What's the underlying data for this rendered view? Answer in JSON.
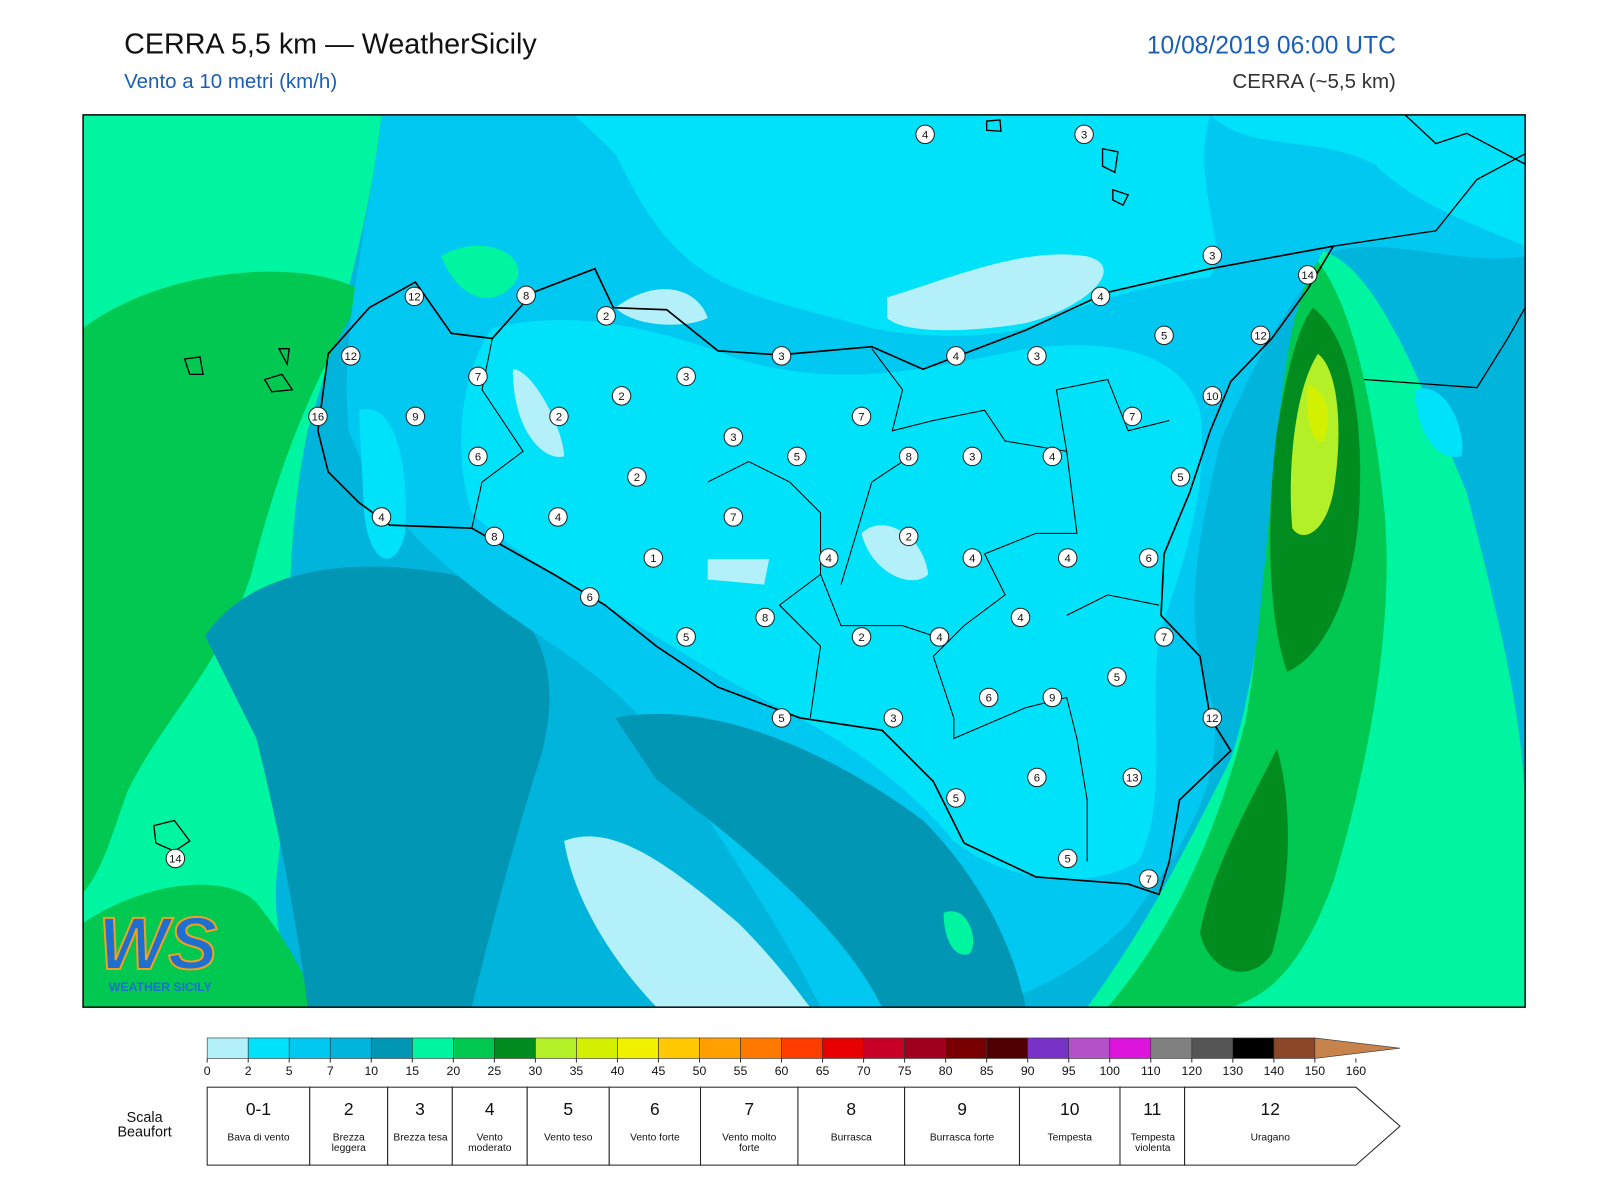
{
  "header": {
    "title": "CERRA 5,5 km — WeatherSicily",
    "subtitle": "Vento a 10 metri (km/h)",
    "datetime": "10/08/2019 06:00 UTC",
    "model": "CERRA (~5,5 km)"
  },
  "map": {
    "station_values": [
      4,
      3,
      3,
      14,
      12,
      8,
      2,
      4,
      5,
      12,
      12,
      3,
      4,
      3,
      7,
      3,
      2,
      10,
      16,
      9,
      2,
      7,
      7,
      3,
      6,
      5,
      8,
      3,
      4,
      2,
      5,
      4,
      4,
      7,
      8,
      2,
      1,
      4,
      4,
      4,
      6,
      6,
      4,
      8,
      5,
      2,
      4,
      7,
      5,
      6,
      9,
      5,
      3,
      12,
      6,
      13,
      5,
      5,
      7,
      14
    ],
    "logo": {
      "mark": "WS",
      "name": "WEATHER SICILY"
    }
  },
  "color_scale": {
    "ticks": [
      0,
      2,
      5,
      7,
      10,
      15,
      20,
      25,
      30,
      35,
      40,
      45,
      50,
      55,
      60,
      65,
      70,
      75,
      80,
      85,
      90,
      95,
      100,
      110,
      120,
      130,
      140,
      150,
      160
    ],
    "colors": [
      "#b4f0fa",
      "#00e1fa",
      "#00c8f0",
      "#00b4dc",
      "#0096b4",
      "#00f5a0",
      "#00c850",
      "#008c1e",
      "#b4f028",
      "#d2f000",
      "#f0f000",
      "#ffc800",
      "#ffa000",
      "#ff7800",
      "#ff3c00",
      "#e60000",
      "#c80028",
      "#a0001e",
      "#780000",
      "#500000",
      "#7832c8",
      "#b450c8",
      "#dc14dc",
      "#808080",
      "#555555",
      "#000000",
      "#8c4628",
      "#c8824b"
    ]
  },
  "beaufort": {
    "label": "Scala Beaufort",
    "levels": [
      {
        "force": "0-1",
        "name": "Bava di vento"
      },
      {
        "force": "2",
        "name": "Brezza leggera"
      },
      {
        "force": "3",
        "name": "Brezza tesa"
      },
      {
        "force": "4",
        "name": "Vento moderato"
      },
      {
        "force": "5",
        "name": "Vento teso"
      },
      {
        "force": "6",
        "name": "Vento forte"
      },
      {
        "force": "7",
        "name": "Vento molto forte"
      },
      {
        "force": "8",
        "name": "Burrasca"
      },
      {
        "force": "9",
        "name": "Burrasca forte"
      },
      {
        "force": "10",
        "name": "Tempesta"
      },
      {
        "force": "11",
        "name": "Tempesta violenta"
      },
      {
        "force": "12",
        "name": "Uragano"
      }
    ]
  }
}
